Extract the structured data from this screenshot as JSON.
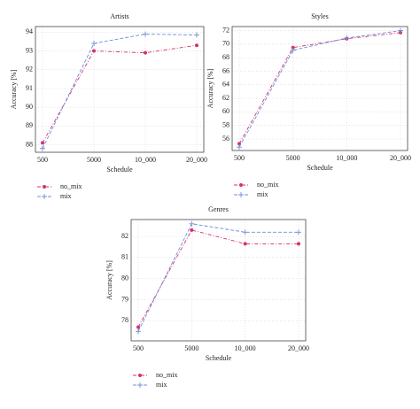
{
  "chart_data": [
    {
      "type": "line",
      "title": "Artists",
      "x_label": "Schedule",
      "y_label": "Accuracy [%]",
      "categories": [
        "500",
        "5000",
        "10_000",
        "20_000"
      ],
      "series": [
        {
          "name": "no_mix",
          "color": "#d6306b",
          "values": [
            88.1,
            93.0,
            92.9,
            93.3
          ]
        },
        {
          "name": "mix",
          "color": "#6f8fd8",
          "values": [
            87.8,
            93.4,
            93.9,
            93.85
          ]
        }
      ],
      "ylim": [
        87.6,
        94.3
      ],
      "yticks": [
        88,
        89,
        90,
        91,
        92,
        93,
        94
      ],
      "grid": true
    },
    {
      "type": "line",
      "title": "Styles",
      "x_label": "Schedule",
      "y_label": "Accuracy [%]",
      "categories": [
        "500",
        "5000",
        "10_000",
        "20_000"
      ],
      "series": [
        {
          "name": "no_mix",
          "color": "#d6306b",
          "values": [
            55.3,
            69.5,
            70.8,
            71.7
          ]
        },
        {
          "name": "mix",
          "color": "#6f8fd8",
          "values": [
            54.8,
            69.1,
            70.9,
            72.0
          ]
        }
      ],
      "ylim": [
        54.3,
        72.6
      ],
      "yticks": [
        56,
        58,
        60,
        62,
        64,
        66,
        68,
        70,
        72
      ],
      "grid": true
    },
    {
      "type": "line",
      "title": "Genres",
      "x_label": "Schedule",
      "y_label": "Accuracy [%]",
      "categories": [
        "500",
        "5000",
        "10_000",
        "20_000"
      ],
      "series": [
        {
          "name": "no_mix",
          "color": "#d6306b",
          "values": [
            77.7,
            82.3,
            81.65,
            81.65
          ]
        },
        {
          "name": "mix",
          "color": "#6f8fd8",
          "values": [
            77.5,
            82.6,
            82.2,
            82.2
          ]
        }
      ],
      "ylim": [
        77.05,
        82.8
      ],
      "yticks": [
        78,
        79,
        80,
        81,
        82
      ],
      "grid": true
    }
  ]
}
